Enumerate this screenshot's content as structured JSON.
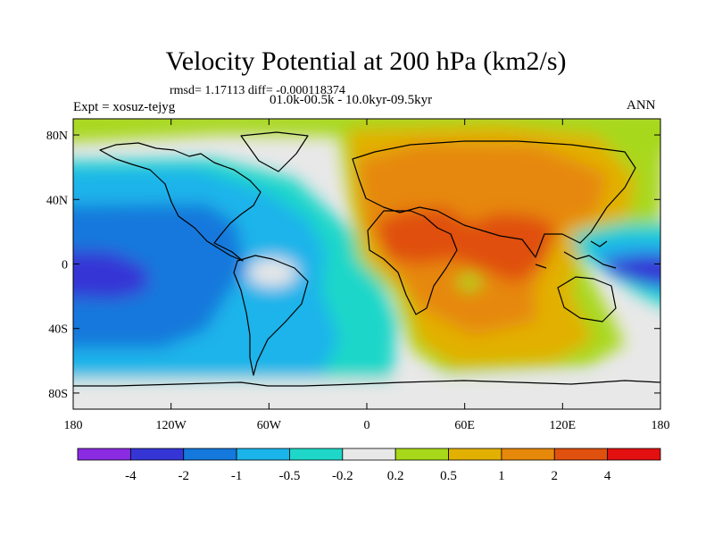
{
  "title": "Velocity Potential at 200 hPa (km2/s)",
  "stats": "rmsd= 1.17113 diff= -0.000118374",
  "expt": "Expt = xosuz-tejyg",
  "period": "01.0k-00.5k - 10.0kyr-09.5kyr",
  "season": "ANN",
  "map": {
    "projection": "cylindrical equidistant",
    "lon_range": [
      -180,
      180
    ],
    "lat_range": [
      -90,
      90
    ],
    "y_ticks": [
      {
        "label": "80N",
        "lat": 80
      },
      {
        "label": "40N",
        "lat": 40
      },
      {
        "label": "0",
        "lat": 0
      },
      {
        "label": "40S",
        "lat": -40
      },
      {
        "label": "80S",
        "lat": -80
      }
    ],
    "x_ticks": [
      {
        "label": "180",
        "lon": -180
      },
      {
        "label": "120W",
        "lon": -120
      },
      {
        "label": "60W",
        "lon": -60
      },
      {
        "label": "0",
        "lon": 0
      },
      {
        "label": "60E",
        "lon": 60
      },
      {
        "label": "120E",
        "lon": 120
      },
      {
        "label": "180",
        "lon": 180
      }
    ]
  },
  "colorbar": {
    "colors": [
      "#8a2be2",
      "#3535d6",
      "#1478dc",
      "#1ab4ea",
      "#1ed7c9",
      "#e8e8e8",
      "#a8d81a",
      "#e2b000",
      "#e6880a",
      "#e0500e",
      "#e21010"
    ],
    "labels": [
      "-4",
      "-2",
      "-1",
      "-0.5",
      "-0.2",
      "0.2",
      "0.5",
      "1",
      "2",
      "4"
    ]
  },
  "colors": {
    "deep_negative": "#3535d6",
    "negative": "#1478dc",
    "weak_negative": "#1ab4ea",
    "near_zero_negative": "#1ed7c9",
    "neutral": "#e8e8e8",
    "weak_positive": "#a8d81a",
    "positive": "#e2b000",
    "strong_positive": "#e6880a",
    "stronger_positive": "#e0500e"
  }
}
